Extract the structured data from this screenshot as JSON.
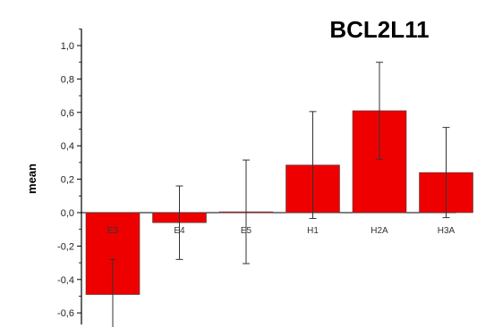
{
  "chart_data": {
    "type": "bar",
    "title": "BCL2L11",
    "ylabel": "mean",
    "xlabel": "",
    "ylim": [
      -0.67,
      1.1
    ],
    "yticks": [
      "1,0",
      "0,8",
      "0,6",
      "0,4",
      "0,2",
      "0,0",
      "-0,2",
      "-0,4",
      "-0,6"
    ],
    "ytick_values": [
      1.0,
      0.8,
      0.6,
      0.4,
      0.2,
      0.0,
      -0.2,
      -0.4,
      -0.6
    ],
    "categories": [
      "E3",
      "E4",
      "E5",
      "H1",
      "H2A",
      "H3A"
    ],
    "values": [
      -0.49,
      -0.06,
      0.005,
      0.285,
      0.61,
      0.24
    ],
    "error": [
      0.21,
      0.22,
      0.31,
      0.32,
      0.29,
      0.27
    ],
    "colors": {
      "bar": "#ee0000",
      "bar_edge": "#444444",
      "axis": "#000000",
      "error": "#333333"
    },
    "grid": false
  }
}
